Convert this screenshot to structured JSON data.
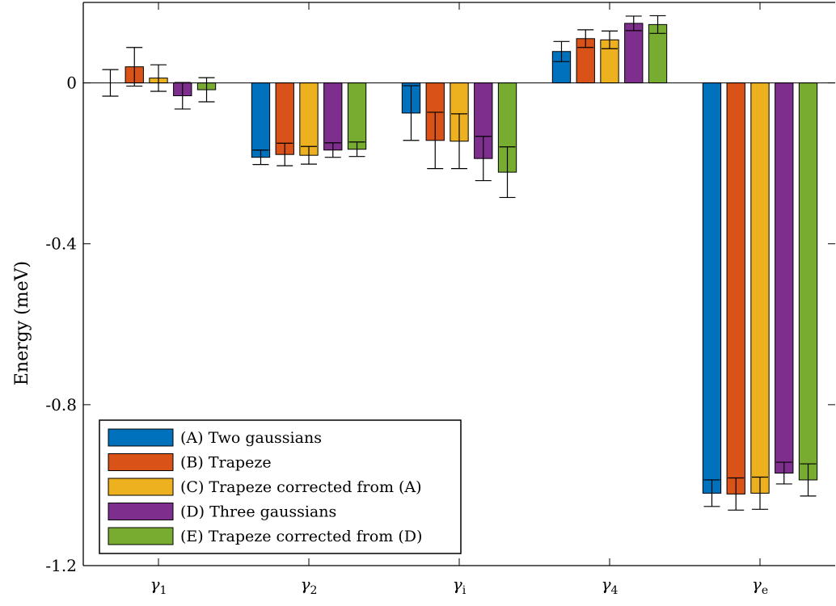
{
  "chart_data": {
    "type": "bar",
    "ylabel": "Energy (meV)",
    "xlabel": "",
    "ylim": [
      -1.2,
      0.2
    ],
    "yticks": [
      0,
      -0.4,
      -0.8,
      -1.2
    ],
    "ytick_labels": [
      "0",
      "-0.4",
      "-0.8",
      "-1.2"
    ],
    "categories": [
      "γ1",
      "γ2",
      "γi",
      "γ4",
      "γe"
    ],
    "category_parts": [
      {
        "base": "γ",
        "sub": "1"
      },
      {
        "base": "γ",
        "sub": "2"
      },
      {
        "base": "γ",
        "sub": "i"
      },
      {
        "base": "γ",
        "sub": "4"
      },
      {
        "base": "γ",
        "sub": "e"
      }
    ],
    "legend_position": "bottom-left",
    "grid": false,
    "series": [
      {
        "name": "(A) Two gaussians",
        "color": "#0072BD",
        "values": [
          0.0,
          -0.185,
          -0.075,
          0.078,
          -1.02
        ],
        "errors": [
          0.033,
          0.018,
          0.068,
          0.025,
          0.033
        ]
      },
      {
        "name": "(B) Trapeze",
        "color": "#D95319",
        "values": [
          0.04,
          -0.178,
          -0.143,
          0.11,
          -1.022
        ],
        "errors": [
          0.048,
          0.028,
          0.07,
          0.022,
          0.04
        ]
      },
      {
        "name": "(C) Trapeze corrected from (A)",
        "color": "#EDB120",
        "values": [
          0.012,
          -0.18,
          -0.145,
          0.107,
          -1.02
        ],
        "errors": [
          0.033,
          0.022,
          0.068,
          0.022,
          0.04
        ]
      },
      {
        "name": "(D) Three gaussians",
        "color": "#7E2F8E",
        "values": [
          -0.032,
          -0.167,
          -0.188,
          0.148,
          -0.97
        ],
        "errors": [
          0.033,
          0.018,
          0.055,
          0.018,
          0.027
        ]
      },
      {
        "name": "(E) Trapeze corrected from (D)",
        "color": "#77AC30",
        "values": [
          -0.017,
          -0.165,
          -0.222,
          0.145,
          -0.987
        ],
        "errors": [
          0.03,
          0.018,
          0.063,
          0.022,
          0.04
        ]
      }
    ]
  }
}
